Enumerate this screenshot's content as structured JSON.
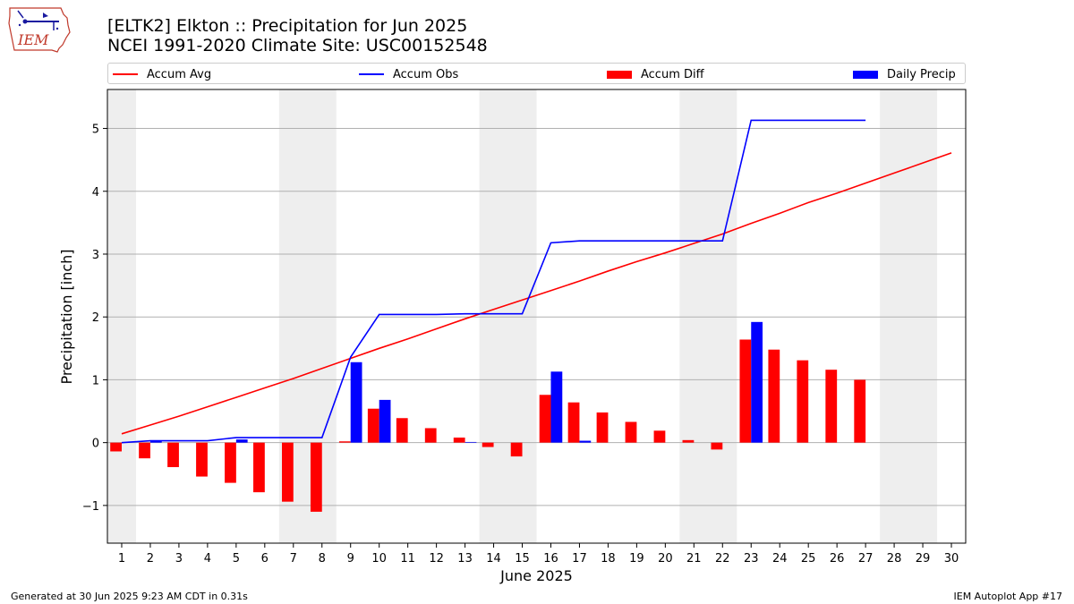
{
  "title_line1": "[ELTK2] Elkton :: Precipitation for Jun 2025",
  "title_line2": "NCEI 1991-2020 Climate Site: USC00152548",
  "logo_text": "IEM",
  "footer_left": "Generated at 30 Jun 2025 9:23 AM CDT in 0.31s",
  "footer_right": "IEM Autoplot App #17",
  "legend": [
    {
      "label": "Accum Avg",
      "color": "#ff0000",
      "kind": "line"
    },
    {
      "label": "Accum Obs",
      "color": "#0000ff",
      "kind": "line"
    },
    {
      "label": "Accum Diff",
      "color": "#ff0000",
      "kind": "bar"
    },
    {
      "label": "Daily Precip",
      "color": "#0000ff",
      "kind": "bar"
    }
  ],
  "chart_data": {
    "type": "bar",
    "xlabel": "June 2025",
    "ylabel": "Precipitation [inch]",
    "xlim": [
      0.5,
      30.5
    ],
    "ylim": [
      -1.6,
      5.62
    ],
    "yticks": [
      -1,
      0,
      1,
      2,
      3,
      4,
      5
    ],
    "ytick_labels": [
      "−1",
      "0",
      "1",
      "2",
      "3",
      "4",
      "5"
    ],
    "grid": "horizontal",
    "legend_position": "top",
    "weekend_shading": [
      [
        0.5,
        1.5
      ],
      [
        6.5,
        8.5
      ],
      [
        13.5,
        15.5
      ],
      [
        20.5,
        22.5
      ],
      [
        27.5,
        29.5
      ]
    ],
    "days": [
      1,
      2,
      3,
      4,
      5,
      6,
      7,
      8,
      9,
      10,
      11,
      12,
      13,
      14,
      15,
      16,
      17,
      18,
      19,
      20,
      21,
      22,
      23,
      24,
      25,
      26,
      27,
      28,
      29,
      30
    ],
    "series": [
      {
        "name": "Accum Avg",
        "type": "line",
        "color": "#ff0000",
        "x": [
          1,
          2,
          3,
          4,
          5,
          6,
          7,
          8,
          9,
          10,
          11,
          12,
          13,
          14,
          15,
          16,
          17,
          18,
          19,
          20,
          21,
          22,
          23,
          24,
          25,
          26,
          27,
          28,
          29,
          30
        ],
        "values": [
          0.14,
          0.28,
          0.42,
          0.57,
          0.72,
          0.87,
          1.02,
          1.18,
          1.34,
          1.5,
          1.65,
          1.81,
          1.97,
          2.12,
          2.27,
          2.42,
          2.57,
          2.73,
          2.88,
          3.02,
          3.17,
          3.32,
          3.49,
          3.65,
          3.82,
          3.97,
          4.13,
          4.29,
          4.45,
          4.61
        ]
      },
      {
        "name": "Accum Obs",
        "type": "line",
        "color": "#0000ff",
        "x": [
          1,
          2,
          3,
          4,
          5,
          6,
          7,
          8,
          9,
          10,
          11,
          12,
          13,
          14,
          15,
          16,
          17,
          18,
          19,
          20,
          21,
          22,
          23,
          24,
          25,
          26,
          27
        ],
        "values": [
          0.0,
          0.03,
          0.03,
          0.03,
          0.08,
          0.08,
          0.08,
          0.08,
          1.36,
          2.04,
          2.04,
          2.04,
          2.05,
          2.05,
          2.05,
          3.18,
          3.21,
          3.21,
          3.21,
          3.21,
          3.21,
          3.21,
          5.13,
          5.13,
          5.13,
          5.13,
          5.13
        ]
      },
      {
        "name": "Accum Diff",
        "type": "bar",
        "color": "#ff0000",
        "x": [
          1,
          2,
          3,
          4,
          5,
          6,
          7,
          8,
          9,
          10,
          11,
          12,
          13,
          14,
          15,
          16,
          17,
          18,
          19,
          20,
          21,
          22,
          23,
          24,
          25,
          26,
          27
        ],
        "values": [
          -0.14,
          -0.25,
          -0.39,
          -0.54,
          -0.64,
          -0.79,
          -0.94,
          -1.1,
          0.02,
          0.54,
          0.39,
          0.23,
          0.08,
          -0.07,
          -0.22,
          0.76,
          0.64,
          0.48,
          0.33,
          0.19,
          0.04,
          -0.11,
          1.64,
          1.48,
          1.31,
          1.16,
          1.0
        ]
      },
      {
        "name": "Daily Precip",
        "type": "bar",
        "color": "#0000ff",
        "x": [
          2,
          5,
          9,
          10,
          13,
          16,
          17,
          23
        ],
        "values": [
          0.03,
          0.05,
          1.28,
          0.68,
          0.01,
          1.13,
          0.03,
          1.92
        ]
      }
    ]
  }
}
